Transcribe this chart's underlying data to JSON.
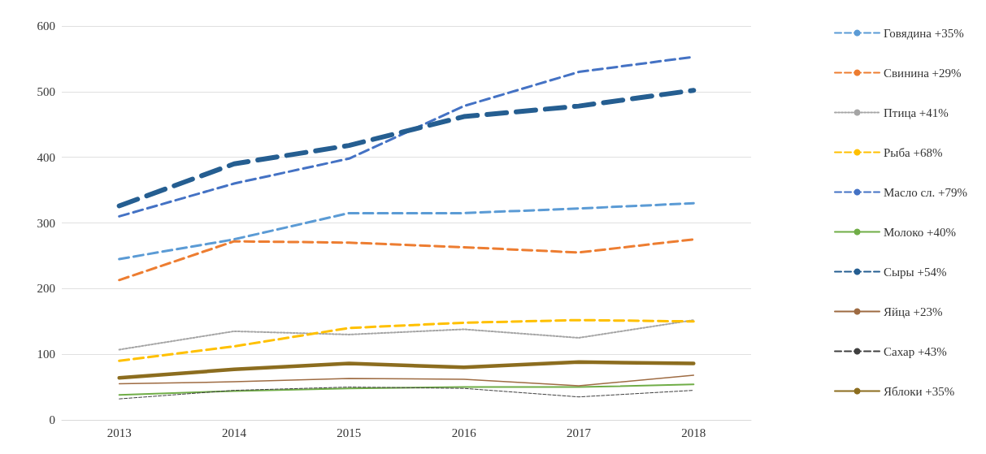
{
  "chart_data": {
    "type": "line",
    "categories": [
      "2013",
      "2014",
      "2015",
      "2016",
      "2017",
      "2018"
    ],
    "series": [
      {
        "name": "Говядина +35%",
        "color": "#5b9bd5",
        "line_style": "dashed",
        "values": [
          245,
          275,
          315,
          315,
          322,
          330
        ]
      },
      {
        "name": "Свинина +29%",
        "color": "#ed7d31",
        "line_style": "dashed",
        "values": [
          213,
          272,
          270,
          263,
          255,
          275
        ]
      },
      {
        "name": "Птица +41%",
        "color": "#a5a5a5",
        "line_style": "dotted",
        "values": [
          107,
          135,
          130,
          138,
          125,
          152
        ]
      },
      {
        "name": "Рыба +68%",
        "color": "#ffc000",
        "line_style": "dashed",
        "values": [
          90,
          112,
          140,
          148,
          152,
          150
        ]
      },
      {
        "name": "Масло сл. +79%",
        "color": "#4472c4",
        "line_style": "dashed",
        "values": [
          310,
          360,
          398,
          478,
          530,
          553
        ]
      },
      {
        "name": "Молоко +40%",
        "color": "#70ad47",
        "line_style": "solid",
        "values": [
          38,
          44,
          48,
          50,
          50,
          54
        ]
      },
      {
        "name": "Сыры +54%",
        "color": "#255e91",
        "line_style": "dashed",
        "values": [
          326,
          390,
          418,
          462,
          478,
          502
        ]
      },
      {
        "name": "Яйца +23%",
        "color": "#9e6b42",
        "line_style": "solid",
        "values": [
          55,
          58,
          63,
          62,
          52,
          68
        ]
      },
      {
        "name": "Сахар +43%",
        "color": "#404040",
        "line_style": "dashed",
        "values": [
          32,
          45,
          50,
          48,
          35,
          45
        ]
      },
      {
        "name": "Яблоки +35%",
        "color": "#8c6d1f",
        "line_style": "solid",
        "values": [
          64,
          77,
          86,
          80,
          88,
          86
        ]
      }
    ],
    "ylim": [
      0,
      600
    ],
    "yticks": [
      0,
      100,
      200,
      300,
      400,
      500,
      600
    ],
    "grid": "y",
    "legend": "right",
    "marker": "none"
  }
}
